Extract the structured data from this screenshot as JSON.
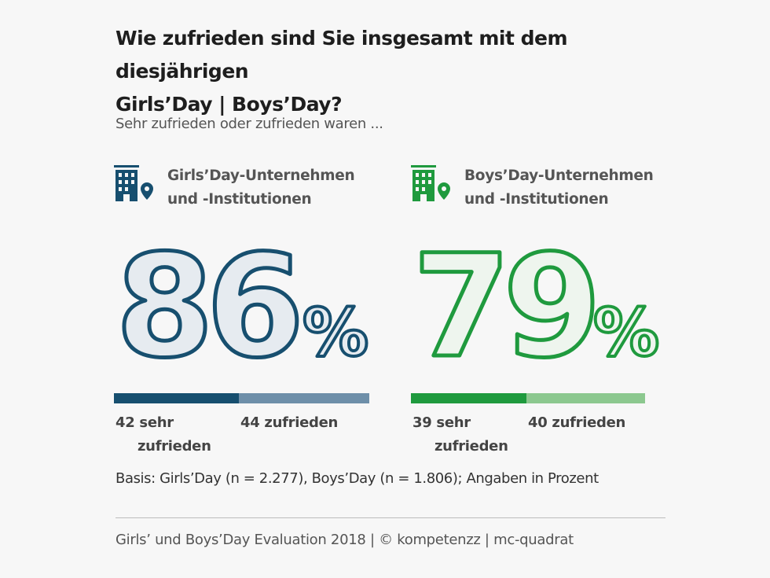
{
  "header": {
    "title_line1": "Wie zufrieden sind Sie insgesamt mit dem diesjährigen",
    "title_line2": "Girls’Day | Boys’Day?",
    "subtitle": "Sehr zufrieden oder zufrieden waren ..."
  },
  "groups": [
    {
      "label_line1": "Girls’Day-Unternehmen",
      "label_line2": "und -Institutionen",
      "total_text": "86",
      "percent_sign": "%",
      "icon": "building-location-icon",
      "color_dark": "#174f6f",
      "color_light": "#6e8fa9",
      "number_fill": "#e6ebf0",
      "seg1_line1": "42 sehr",
      "seg1_line2": "zufrieden",
      "seg2_label": "44 zufrieden"
    },
    {
      "label_line1": "Boys’Day-Unternehmen",
      "label_line2": "und -Institutionen",
      "total_text": "79",
      "percent_sign": "%",
      "icon": "building-location-icon",
      "color_dark": "#1f9a3e",
      "color_light": "#8cc88f",
      "number_fill": "#eef5ee",
      "seg1_line1": "39 sehr",
      "seg1_line2": "zufrieden",
      "seg2_label": "40 zufrieden"
    }
  ],
  "chart_data": {
    "type": "bar",
    "categories": [
      "Girls’Day-Unternehmen und -Institutionen",
      "Boys’Day-Unternehmen und -Institutionen"
    ],
    "series": [
      {
        "name": "sehr zufrieden",
        "values": [
          42,
          39
        ]
      },
      {
        "name": "zufrieden",
        "values": [
          44,
          40
        ]
      }
    ],
    "totals": [
      86,
      79
    ],
    "unit": "%",
    "orientation": "horizontal-stacked",
    "title": "Wie zufrieden sind Sie insgesamt mit dem diesjährigen Girls’Day | Boys’Day?",
    "subtitle": "Sehr zufrieden oder zufrieden waren ..."
  },
  "basis": "Basis: Girls’Day (n = 2.277), Boys’Day (n = 1.806); Angaben in Prozent",
  "footer": "Girls’ und Boys’Day Evaluation 2018 | © kompetenzz | mc-quadrat"
}
